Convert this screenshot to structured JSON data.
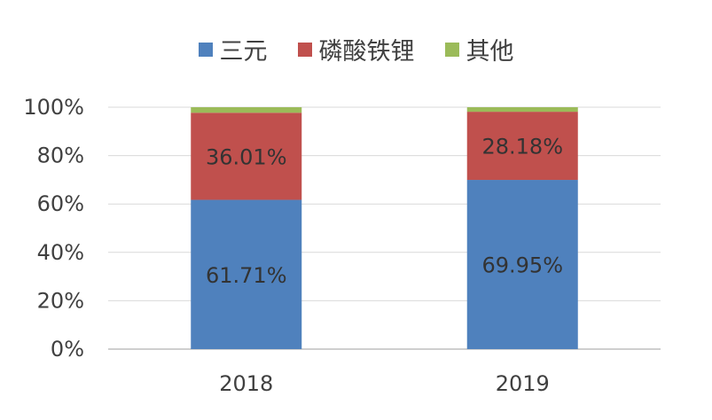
{
  "chart_data": {
    "type": "bar",
    "stacked": true,
    "categories": [
      "2018",
      "2019"
    ],
    "series": [
      {
        "name": "三元",
        "color": "#4f81bd",
        "values": [
          61.71,
          69.95
        ],
        "labels": [
          "61.71%",
          "69.95%"
        ]
      },
      {
        "name": "磷酸铁锂",
        "color": "#c0504d",
        "values": [
          36.01,
          28.18
        ],
        "labels": [
          "36.01%",
          "28.18%"
        ]
      },
      {
        "name": "其他",
        "color": "#9bbb59",
        "values": [
          2.28,
          1.87
        ],
        "labels": [
          "",
          ""
        ]
      }
    ],
    "ylim": [
      0,
      100
    ],
    "yticks": [
      "0%",
      "20%",
      "40%",
      "60%",
      "80%",
      "100%"
    ],
    "grid": true,
    "legend": "top"
  }
}
